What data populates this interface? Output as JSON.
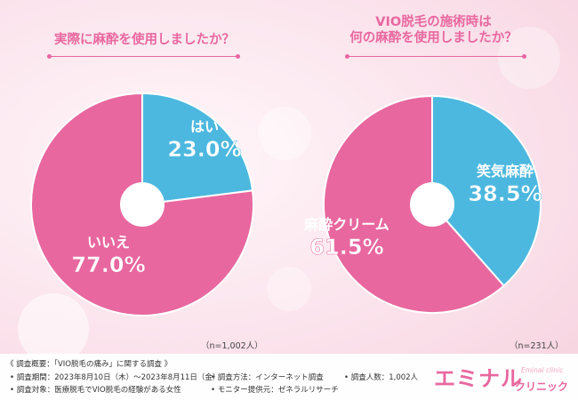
{
  "chart_data": [
    {
      "type": "pie",
      "title": "実際に麻酔を使用しましたか？",
      "n_label": "（n=1,002人）",
      "slices": [
        {
          "label": "はい",
          "value": 23.0,
          "value_text": "23.0%",
          "color": "#4db8df"
        },
        {
          "label": "いいえ",
          "value": 77.0,
          "value_text": "77.0%",
          "color": "#e8679f"
        }
      ]
    },
    {
      "type": "pie",
      "title_lines": [
        "VIO脱毛の施術時は",
        "何の麻酔を使用しましたか？"
      ],
      "n_label": "（n=231人）",
      "slices": [
        {
          "label": "笑気麻酔",
          "value": 38.5,
          "value_text": "38.5%",
          "color": "#4db8df"
        },
        {
          "label": "麻酔クリーム",
          "value": 61.5,
          "value_text": "61.5%",
          "color": "#e8679f"
        }
      ]
    }
  ],
  "footer": {
    "overview": "《 調査概要：「VIO脱毛の痛み」に関する調査 》",
    "period": "• 調査期間：2023年8月10日（木）～2023年8月11日（金）",
    "method": "• 調査方法：インターネット調査",
    "count": "• 調査人数：1,002人",
    "target": "• 調査対象：医療脱毛でVIO脱毛の経験がある女性",
    "provider": "• モニター提供元：ゼネラルリサーチ"
  },
  "logo": {
    "main": "エミナル",
    "sub": "クリニック",
    "en": "Eminal clinic"
  }
}
